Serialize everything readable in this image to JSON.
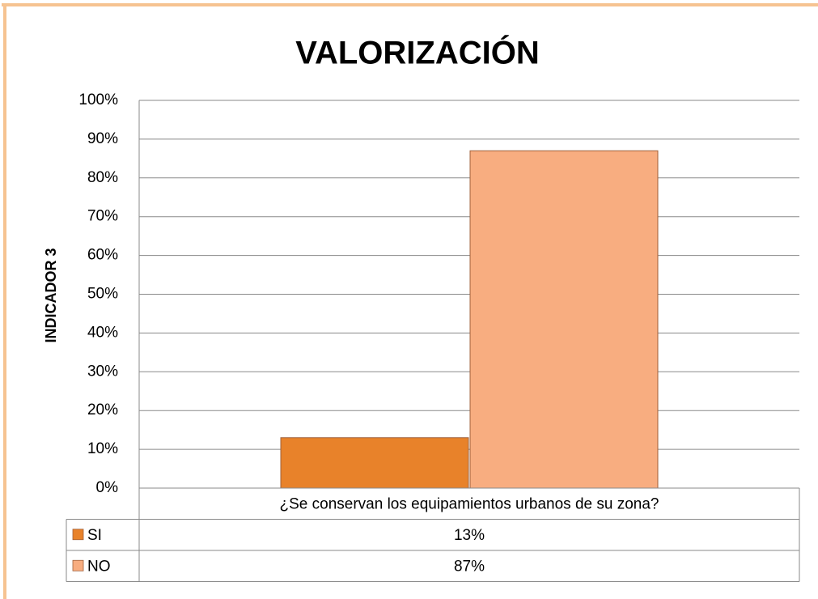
{
  "chart_data": {
    "type": "bar",
    "title": "VALORIZACIÓN",
    "y_label": "INDICADOR 3",
    "categories": [
      "¿Se conservan los equipamientos urbanos de su zona?"
    ],
    "series": [
      {
        "name": "SI",
        "color": "#e8822a",
        "values": [
          13
        ],
        "value_labels": [
          "13%"
        ]
      },
      {
        "name": "NO",
        "color": "#f8ad80",
        "values": [
          87
        ],
        "value_labels": [
          "87%"
        ]
      }
    ],
    "ylim": [
      0,
      100
    ],
    "yticks": [
      {
        "value": 0,
        "label": "0%"
      },
      {
        "value": 10,
        "label": "10%"
      },
      {
        "value": 20,
        "label": "20%"
      },
      {
        "value": 30,
        "label": "30%"
      },
      {
        "value": 40,
        "label": "40%"
      },
      {
        "value": 50,
        "label": "50%"
      },
      {
        "value": 60,
        "label": "60%"
      },
      {
        "value": 70,
        "label": "70%"
      },
      {
        "value": 80,
        "label": "80%"
      },
      {
        "value": 90,
        "label": "90%"
      },
      {
        "value": 100,
        "label": "100%"
      }
    ],
    "grid": true
  }
}
